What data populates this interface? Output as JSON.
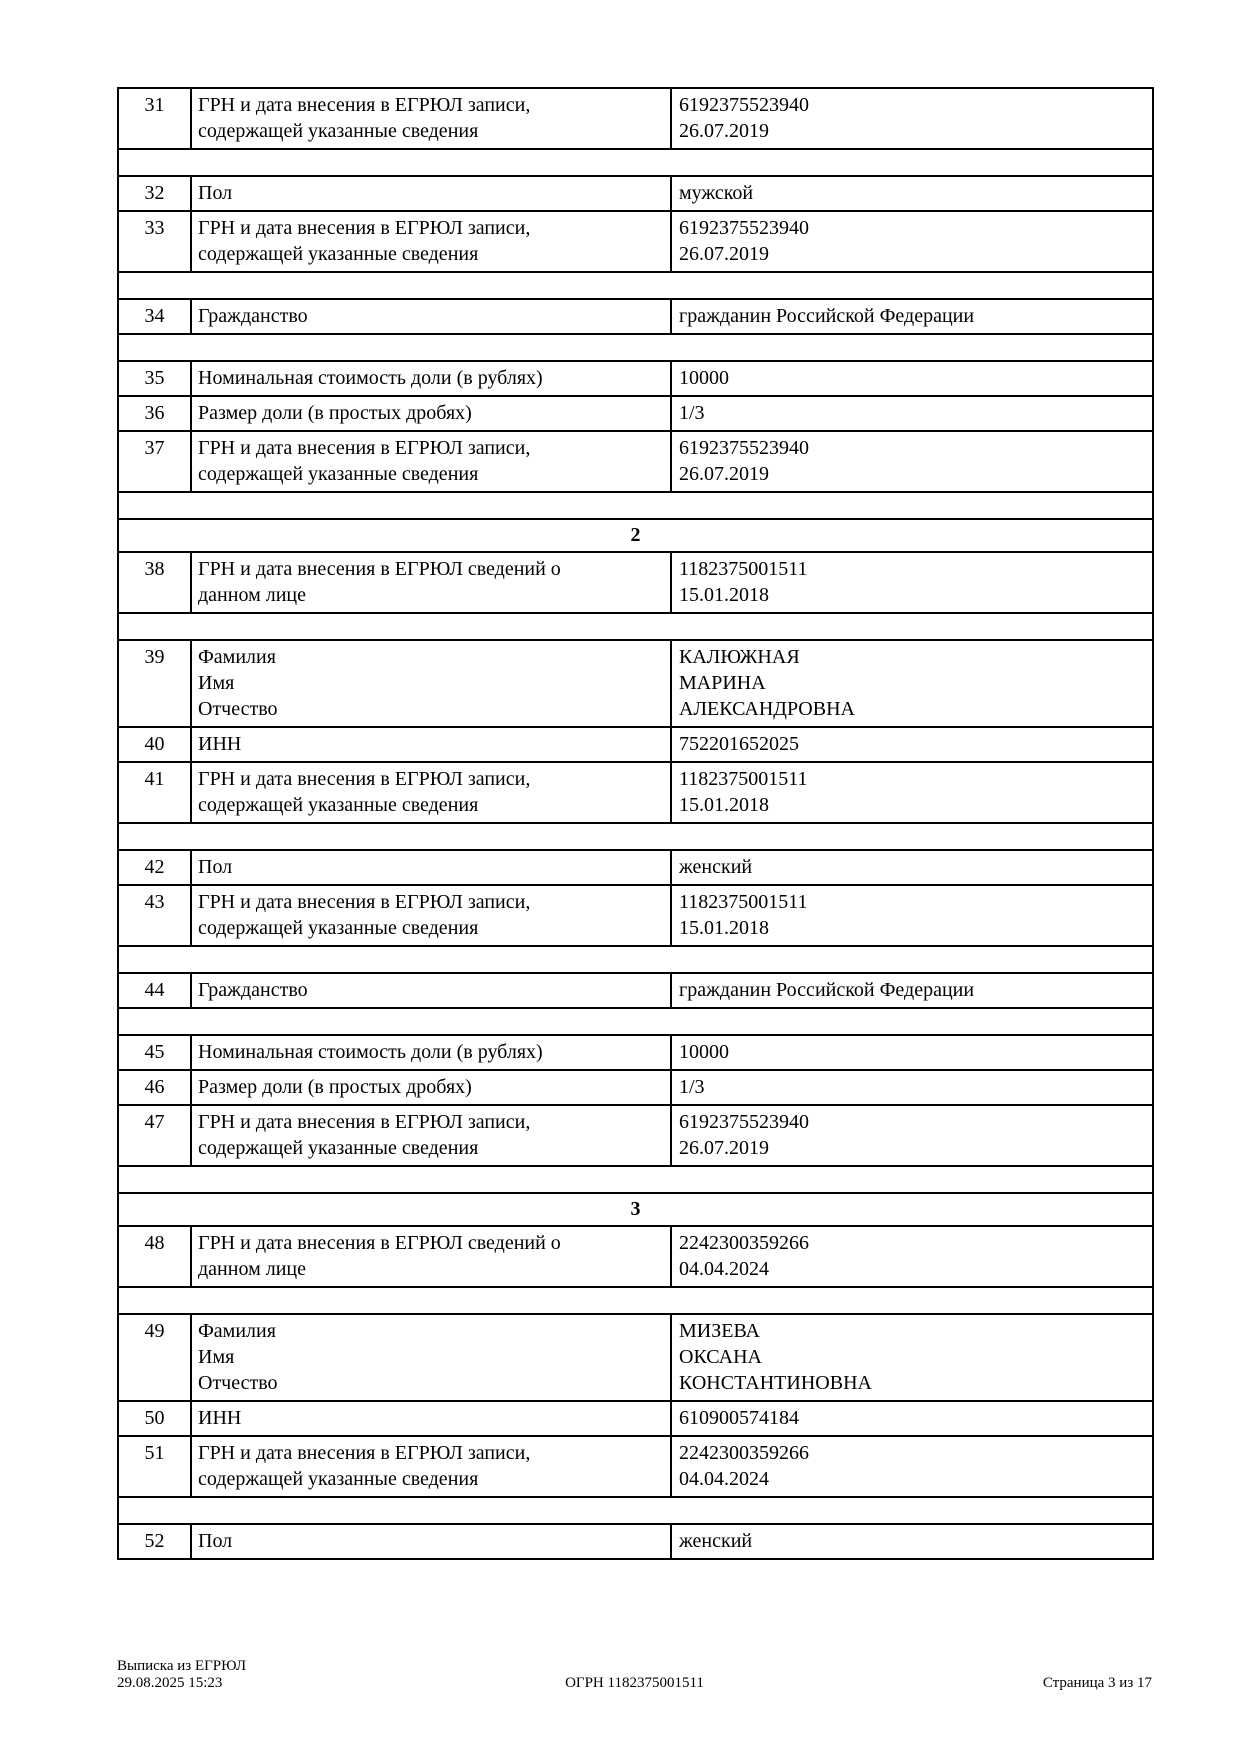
{
  "document": {
    "rows": [
      {
        "type": "data",
        "num": "31",
        "label": "ГРН и дата внесения в ЕГРЮЛ записи,\nсодержащей указанные сведения",
        "value": "6192375523940\n26.07.2019"
      },
      {
        "type": "spacer"
      },
      {
        "type": "data",
        "num": "32",
        "label": "Пол",
        "value": "мужской"
      },
      {
        "type": "data",
        "num": "33",
        "label": "ГРН и дата внесения в ЕГРЮЛ записи,\nсодержащей указанные сведения",
        "value": "6192375523940\n26.07.2019"
      },
      {
        "type": "spacer"
      },
      {
        "type": "data",
        "num": "34",
        "label": "Гражданство",
        "value": "гражданин Российской Федерации"
      },
      {
        "type": "spacer"
      },
      {
        "type": "data",
        "num": "35",
        "label": "Номинальная стоимость доли (в рублях)",
        "value": "10000"
      },
      {
        "type": "data",
        "num": "36",
        "label": "Размер доли (в простых дробях)",
        "value": "1/3"
      },
      {
        "type": "data",
        "num": "37",
        "label": "ГРН и дата внесения в ЕГРЮЛ записи,\nсодержащей указанные сведения",
        "value": "6192375523940\n26.07.2019"
      },
      {
        "type": "spacer"
      },
      {
        "type": "section",
        "label": "2"
      },
      {
        "type": "data",
        "num": "38",
        "label": "ГРН и дата внесения в ЕГРЮЛ сведений о\nданном лице",
        "value": "1182375001511\n15.01.2018"
      },
      {
        "type": "spacer"
      },
      {
        "type": "data",
        "num": "39",
        "label": "Фамилия\nИмя\nОтчество",
        "value": "КАЛЮЖНАЯ\nМАРИНА\nАЛЕКСАНДРОВНА"
      },
      {
        "type": "data",
        "num": "40",
        "label": "ИНН",
        "value": "752201652025"
      },
      {
        "type": "data",
        "num": "41",
        "label": "ГРН и дата внесения в ЕГРЮЛ записи,\nсодержащей указанные сведения",
        "value": "1182375001511\n15.01.2018"
      },
      {
        "type": "spacer"
      },
      {
        "type": "data",
        "num": "42",
        "label": "Пол",
        "value": "женский"
      },
      {
        "type": "data",
        "num": "43",
        "label": "ГРН и дата внесения в ЕГРЮЛ записи,\nсодержащей указанные сведения",
        "value": "1182375001511\n15.01.2018"
      },
      {
        "type": "spacer"
      },
      {
        "type": "data",
        "num": "44",
        "label": "Гражданство",
        "value": "гражданин Российской Федерации"
      },
      {
        "type": "spacer"
      },
      {
        "type": "data",
        "num": "45",
        "label": "Номинальная стоимость доли (в рублях)",
        "value": "10000"
      },
      {
        "type": "data",
        "num": "46",
        "label": "Размер доли (в простых дробях)",
        "value": "1/3"
      },
      {
        "type": "data",
        "num": "47",
        "label": "ГРН и дата внесения в ЕГРЮЛ записи,\nсодержащей указанные сведения",
        "value": "6192375523940\n26.07.2019"
      },
      {
        "type": "spacer"
      },
      {
        "type": "section",
        "label": "3"
      },
      {
        "type": "data",
        "num": "48",
        "label": "ГРН и дата внесения в ЕГРЮЛ сведений о\nданном лице",
        "value": "2242300359266\n04.04.2024"
      },
      {
        "type": "spacer"
      },
      {
        "type": "data",
        "num": "49",
        "label": "Фамилия\nИмя\nОтчество",
        "value": "МИЗЕВА\nОКСАНА\nКОНСТАНТИНОВНА"
      },
      {
        "type": "data",
        "num": "50",
        "label": "ИНН",
        "value": "610900574184"
      },
      {
        "type": "data",
        "num": "51",
        "label": "ГРН и дата внесения в ЕГРЮЛ записи,\nсодержащей указанные сведения",
        "value": "2242300359266\n04.04.2024"
      },
      {
        "type": "spacer"
      },
      {
        "type": "data",
        "num": "52",
        "label": "Пол",
        "value": "женский"
      }
    ],
    "footer": {
      "left_line1": "Выписка из ЕГРЮЛ",
      "left_line2": "29.08.2025 15:23",
      "center": "ОГРН 1182375001511",
      "right": "Страница 3 из 17"
    }
  }
}
